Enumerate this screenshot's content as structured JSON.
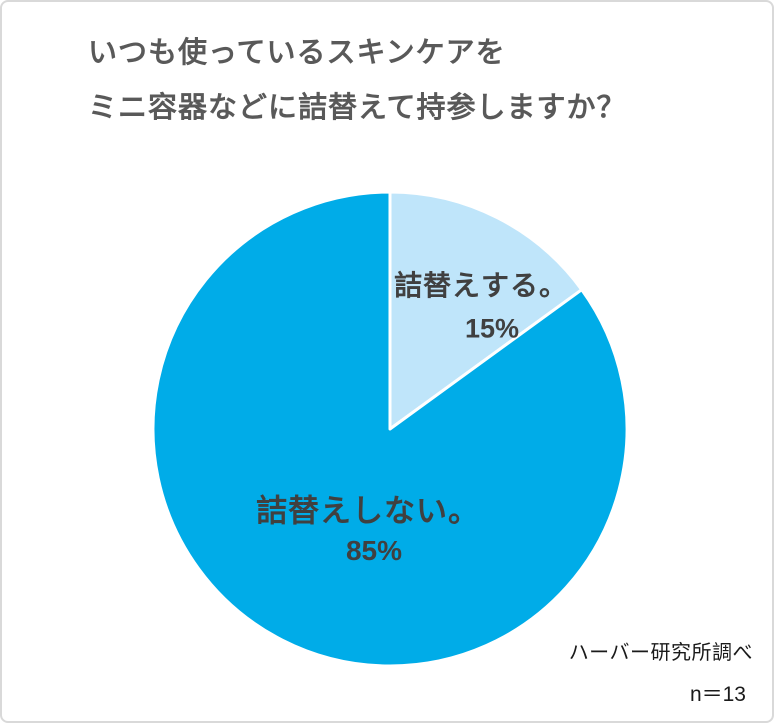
{
  "title": {
    "line1": "いつも使っているスキンケアを",
    "line2": "ミニ容器などに詰替えて持参しますか？"
  },
  "chart_data": {
    "type": "pie",
    "title": "いつも使っているスキンケアをミニ容器などに詰替えて持参しますか？",
    "start_angle_deg": -90,
    "direction": "clockwise",
    "separator_color": "#ffffff",
    "slices": [
      {
        "label": "詰替えする。",
        "value": 15,
        "percent_label": "15%",
        "color": "#bfe5fa"
      },
      {
        "label": "詰替えしない。",
        "value": 85,
        "percent_label": "85%",
        "color": "#00ace8"
      }
    ]
  },
  "footer": {
    "source": "ハーバー研究所調べ",
    "sample_size": "n＝13"
  },
  "colors": {
    "title_text": "#595959",
    "slice_label_text": "#404040",
    "footer_text": "#1a1a1a",
    "frame_border": "#d9d9d9",
    "background": "#ffffff"
  }
}
